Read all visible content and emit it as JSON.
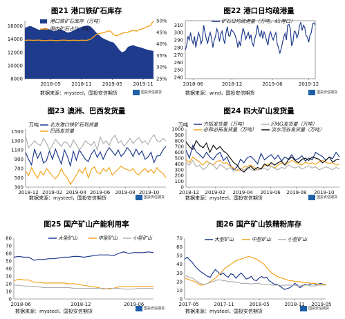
{
  "colors": {
    "navy": "#1f3b8c",
    "orange": "#f2a31f",
    "grey": "#b0b0b0",
    "black": "#111111",
    "fill": "#1f3b8c"
  },
  "logo_text": "国投安信期货",
  "chart_data": [
    {
      "id": "c21",
      "type": "area",
      "title": "图21  港口铁矿石库存",
      "source": "数据来源：mysteel，国投安信期货",
      "x_ticks": [
        "2018-05",
        "2018-11",
        "2019-05",
        "2019-11"
      ],
      "y_ticks": [
        "8000",
        "10000",
        "12000",
        "14000",
        "16000"
      ],
      "y2_ticks": [
        "25%",
        "30%",
        "35%",
        "40%",
        "45%",
        "50%"
      ],
      "ylim": [
        8000,
        16800
      ],
      "y2lim": [
        25,
        50
      ],
      "series": [
        {
          "name": "港口铁矿石库存（万吨）",
          "type": "area",
          "axis": "left",
          "values": [
            15700,
            15900,
            16000,
            15800,
            15600,
            15400,
            15500,
            15700,
            15600,
            15400,
            15200,
            15300,
            15500,
            15400,
            15200,
            15000,
            15100,
            15300,
            15500,
            15700,
            15900,
            16000,
            16100,
            15900,
            15500,
            15000,
            14600,
            14200,
            14000,
            13800,
            13600,
            13500,
            13000,
            12400,
            12000,
            12200,
            12800,
            13000,
            13100,
            12900,
            12800,
            12700,
            12500,
            12400,
            12300,
            12200
          ]
        },
        {
          "name": "国内港口库存占比（%）",
          "type": "line",
          "axis": "right",
          "values": [
            41.5,
            41.6,
            41.6,
            41.5,
            41.6,
            41.6,
            41.5,
            41.4,
            41.5,
            41.6,
            41.5,
            41.4,
            41.5,
            41.6,
            41.6,
            41.5,
            41.5,
            41.6,
            41.5,
            41.5,
            41.6,
            41.5,
            41.6,
            42,
            43,
            44,
            44.5,
            44.7,
            45,
            45.5,
            45.5,
            44,
            43.5,
            44,
            44.5,
            45,
            45,
            45.5,
            45.8,
            45.5,
            46,
            46.5,
            47,
            47.5,
            48,
            50
          ]
        }
      ]
    },
    {
      "id": "c22",
      "type": "line",
      "title": "图22  港口日均疏港量",
      "source": "数据来源：wind，国投安信期货",
      "x_ticks": [
        "2018-06",
        "2018-12",
        "2019-06",
        "2019-12"
      ],
      "y_ticks": [
        "240",
        "250",
        "260",
        "270",
        "280",
        "290",
        "300",
        "310"
      ],
      "ylim": [
        238,
        316
      ],
      "series": [
        {
          "name": "矿石日均疏港量（万吨，45港口）",
          "values": [
            277,
            282,
            295,
            290,
            300,
            290,
            285,
            295,
            280,
            290,
            300,
            295,
            285,
            290,
            310,
            300,
            292,
            285,
            295,
            300,
            292,
            280,
            290,
            295,
            305,
            300,
            288,
            298,
            302,
            292,
            285,
            300,
            308,
            296,
            295,
            304,
            302,
            300,
            296,
            290,
            280,
            288,
            282,
            296,
            306,
            300,
            291,
            296,
            300,
            292,
            297,
            286,
            282,
            292,
            298,
            310,
            300,
            295,
            303,
            292,
            301,
            296,
            289,
            283,
            297,
            301,
            294,
            290,
            296,
            300,
            285,
            280,
            272,
            278,
            286,
            294,
            299,
            290,
            310,
            311,
            305,
            282,
            287,
            302,
            301,
            293,
            298,
            309,
            314,
            303,
            310,
            307,
            296,
            294,
            287,
            297,
            300,
            312,
            313,
            310
          ]
        }
      ]
    },
    {
      "id": "c23",
      "type": "line",
      "title": "图23  澳洲、巴西发货量",
      "source": "数据来源：mysteel，国投安信期货",
      "unit": "万吨",
      "x_ticks": [
        "2018-12",
        "2019-02",
        "2019-04",
        "2019-06",
        "2019-08",
        "2019-10"
      ],
      "y_ticks": [
        "300",
        "500",
        "700",
        "900",
        "1100",
        "1300",
        "1500"
      ],
      "ylim": [
        300,
        1550
      ],
      "series": [
        {
          "name": "北方港口铁矿石到货量",
          "color": "navy",
          "values": [
            1050,
            900,
            780,
            1120,
            920,
            1050,
            820,
            870,
            1080,
            900,
            1120,
            950,
            800,
            1100,
            960,
            760,
            1070,
            880,
            1100,
            1000,
            900,
            850,
            1010,
            1100,
            940,
            1060,
            900,
            1050,
            1150,
            1070,
            980,
            1100,
            960,
            1030,
            1150,
            1080,
            960,
            1120,
            1000,
            1080,
            900,
            950,
            1050,
            830,
            970,
            980,
            1100,
            1180
          ]
        },
        {
          "name": "巴西发货量",
          "color": "orange",
          "values": [
            650,
            550,
            720,
            600,
            500,
            640,
            560,
            700,
            620,
            540,
            480,
            560,
            700,
            570,
            500,
            360,
            450,
            560,
            680,
            600,
            720,
            500,
            680,
            740,
            610,
            590,
            700,
            640,
            720,
            560,
            620,
            690,
            750,
            700,
            680,
            650,
            700,
            600,
            560,
            650,
            700,
            620,
            680,
            600,
            720,
            640,
            600,
            500
          ]
        },
        {
          "name": "澳洲发货量",
          "color": "grey",
          "values": [
            1400,
            1150,
            1220,
            1300,
            1230,
            1200,
            1350,
            1250,
            1100,
            1200,
            1330,
            1250,
            1180,
            1280,
            1250,
            1150,
            1320,
            1220,
            1100,
            1180,
            1300,
            1240,
            1200,
            1280,
            1100,
            1380,
            1240,
            1300,
            1200,
            1350,
            1420,
            1250,
            1300,
            1180,
            1260,
            1350,
            1240,
            1310,
            1370,
            1250,
            1300,
            1220,
            1350,
            1430,
            1300,
            1270,
            1350,
            1300
          ]
        }
      ]
    },
    {
      "id": "c24",
      "type": "line",
      "title": "图24  四大矿山发货量",
      "source": "数据来源：mysteel，国投安信期货",
      "unit": "万吨",
      "x_ticks": [
        "2018-12",
        "2019-02",
        "2019-04",
        "2019-06",
        "2019-08",
        "2019-10"
      ],
      "y_ticks": [
        "0",
        "100",
        "200",
        "300",
        "400",
        "500",
        "600",
        "700",
        "800",
        "900",
        "1000"
      ],
      "ylim": [
        0,
        1000
      ],
      "series": [
        {
          "name": "力拓发货量（万吨）",
          "color": "navy",
          "values": [
            640,
            500,
            720,
            610,
            560,
            500,
            600,
            520,
            470,
            560,
            600,
            460,
            520,
            380,
            300,
            350,
            480,
            420,
            510,
            530,
            470,
            400,
            580,
            470,
            520,
            560,
            480,
            550,
            450,
            520,
            480,
            560,
            470,
            490,
            540,
            450,
            500,
            470,
            600,
            560,
            530,
            460,
            520,
            490,
            600,
            520
          ]
        },
        {
          "name": "必和必拓发货量（万吨）",
          "color": "orange",
          "values": [
            480,
            420,
            520,
            470,
            430,
            380,
            450,
            410,
            380,
            440,
            460,
            410,
            420,
            360,
            330,
            280,
            300,
            350,
            360,
            380,
            340,
            300,
            320,
            370,
            400,
            360,
            330,
            380,
            420,
            390,
            420,
            460,
            430,
            400,
            380,
            430,
            400,
            420,
            390,
            440,
            460,
            430,
            410,
            420,
            380,
            400
          ]
        },
        {
          "name": "FMG发货量（万吨）",
          "color": "grey",
          "values": [
            420,
            380,
            460,
            350,
            380,
            300,
            340,
            420,
            380,
            310,
            390,
            350,
            300,
            340,
            270,
            300,
            330,
            290,
            340,
            310,
            280,
            300,
            310,
            330,
            290,
            360,
            320,
            300,
            340,
            320,
            380,
            350,
            330,
            360,
            310,
            340,
            370,
            330,
            350,
            300,
            320,
            350,
            330,
            300,
            340,
            310
          ]
        },
        {
          "name": "淡水河谷发货量（万吨）",
          "color": "black",
          "values": [
            780,
            700,
            650,
            800,
            720,
            680,
            760,
            600,
            720,
            650,
            700,
            620,
            580,
            500,
            420,
            380,
            300,
            260,
            320,
            360,
            300,
            340,
            310,
            400,
            360,
            420,
            380,
            420,
            450,
            380,
            470,
            520,
            460,
            420,
            480,
            500,
            460,
            520,
            500,
            480,
            420,
            460,
            520,
            430,
            470,
            480
          ]
        }
      ]
    },
    {
      "id": "c25",
      "type": "line",
      "title": "图25  国产矿山产能利用率",
      "source": "数据来源：mysteel，国投安信期货",
      "x_ticks": [
        "2018-06",
        "2018-12",
        "2019-06"
      ],
      "y_ticks": [
        "0",
        "10",
        "20",
        "30",
        "40",
        "50",
        "60",
        "70",
        "80"
      ],
      "ylim": [
        0,
        80
      ],
      "series": [
        {
          "name": "大型矿山",
          "color": "navy",
          "values": [
            55,
            56,
            55,
            55,
            51,
            52,
            52,
            53,
            53,
            54,
            55,
            55,
            56,
            56,
            55,
            56,
            57,
            58,
            58,
            58,
            57,
            60,
            62,
            60,
            61,
            61,
            61,
            62,
            61
          ]
        },
        {
          "name": "中型矿山",
          "color": "orange",
          "values": [
            24,
            26,
            25,
            25,
            22,
            22,
            21,
            21,
            21,
            21,
            21,
            20,
            20,
            19,
            18,
            17,
            16,
            15,
            13,
            14,
            14,
            16,
            16,
            16,
            16,
            16,
            16,
            16,
            16
          ]
        },
        {
          "name": "小型矿山",
          "color": "grey",
          "values": [
            18,
            18,
            17,
            17,
            16,
            16,
            15,
            15,
            15,
            15,
            15,
            15,
            14,
            14,
            14,
            14,
            14,
            14,
            14,
            13,
            14,
            14,
            13,
            13,
            13,
            14,
            14,
            14,
            14
          ]
        }
      ]
    },
    {
      "id": "c26",
      "type": "line",
      "title": "图26  国产矿山铁精粉库存",
      "source": "数据来源：mysteel，国投安信期货",
      "x_ticks": [
        "2017-05",
        "2017-11",
        "2018-05",
        "2018-11",
        "2019-05"
      ],
      "y_ticks": [
        "0",
        "10",
        "20",
        "30",
        "40",
        "50",
        "60",
        "70"
      ],
      "ylim": [
        0,
        70
      ],
      "series": [
        {
          "name": "大型矿山",
          "color": "navy",
          "values": [
            46,
            48,
            45,
            42,
            38,
            35,
            32,
            30,
            28,
            26,
            25,
            30,
            34,
            31,
            28,
            30,
            27,
            25,
            29,
            28,
            24,
            27,
            30,
            27,
            23,
            24,
            26,
            22,
            21,
            24,
            26,
            24,
            25,
            21,
            19,
            17,
            17,
            15,
            13,
            11,
            12,
            13,
            15,
            18,
            16,
            13,
            15,
            17,
            16,
            17,
            18,
            17,
            17,
            18,
            17,
            16
          ]
        },
        {
          "name": "中型矿山",
          "color": "orange",
          "values": [
            24,
            23,
            22,
            21,
            20,
            18,
            16,
            16,
            17,
            18,
            20,
            22,
            24,
            27,
            30,
            33,
            36,
            38,
            40,
            42,
            44,
            45,
            46,
            47,
            48,
            49,
            48,
            47,
            46,
            44,
            42,
            40,
            36,
            33,
            30,
            28,
            26,
            25,
            24,
            23,
            22,
            21,
            21,
            20,
            20,
            20,
            19,
            19,
            19,
            18,
            18,
            18,
            17,
            17,
            17,
            17
          ]
        },
        {
          "name": "小型矿山",
          "color": "grey",
          "values": [
            27,
            26,
            25,
            24,
            22,
            20,
            18,
            17,
            17,
            18,
            19,
            20,
            21,
            22,
            22,
            21,
            21,
            20,
            20,
            20,
            19,
            19,
            18,
            18,
            18,
            18,
            17,
            18,
            18,
            18,
            17,
            17,
            17,
            17,
            16,
            16,
            16,
            16,
            15,
            16,
            16,
            16,
            16,
            16,
            15,
            15,
            16,
            16,
            16,
            15,
            15,
            15,
            16,
            16,
            16,
            16
          ]
        }
      ]
    }
  ]
}
